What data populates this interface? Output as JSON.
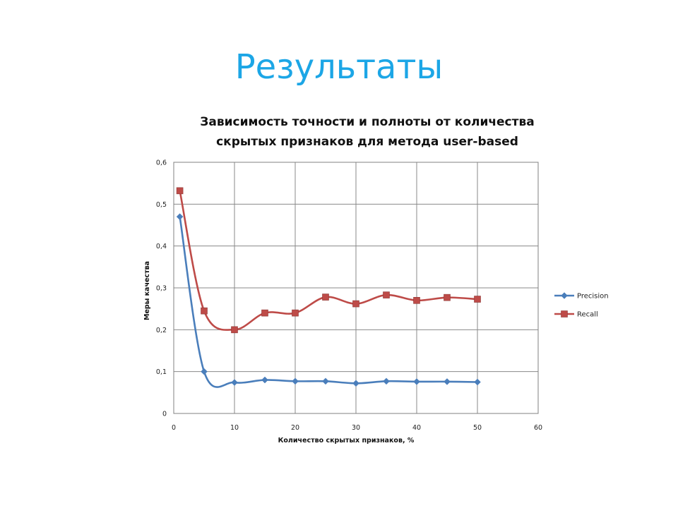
{
  "slide": {
    "title": "Результаты"
  },
  "chart_data": {
    "type": "line",
    "smooth": true,
    "title_lines": [
      "Зависимость точности и полноты от количества",
      "скрытых признаков для метода user-based"
    ],
    "xlabel": "Количество скрытых признаков, %",
    "ylabel": "Меры качества",
    "xlim": [
      0,
      60
    ],
    "ylim": [
      0,
      0.6
    ],
    "x_ticks": [
      "0",
      "10",
      "20",
      "30",
      "40",
      "50",
      "60"
    ],
    "y_ticks": [
      "0",
      "0,1",
      "0,2",
      "0,3",
      "0,4",
      "0,5",
      "0,6"
    ],
    "grid": true,
    "legend_position": "right",
    "x": [
      1,
      5,
      10,
      15,
      20,
      25,
      30,
      35,
      40,
      45,
      50
    ],
    "series": [
      {
        "name": "Precision",
        "color": "#4a7ebb",
        "marker": "diamond",
        "values": [
          0.47,
          0.1,
          0.074,
          0.08,
          0.077,
          0.077,
          0.072,
          0.077,
          0.076,
          0.076,
          0.075
        ]
      },
      {
        "name": "Recall",
        "color": "#be4b48",
        "marker": "square",
        "values": [
          0.532,
          0.245,
          0.2,
          0.24,
          0.24,
          0.278,
          0.262,
          0.283,
          0.27,
          0.277,
          0.273
        ]
      }
    ]
  }
}
